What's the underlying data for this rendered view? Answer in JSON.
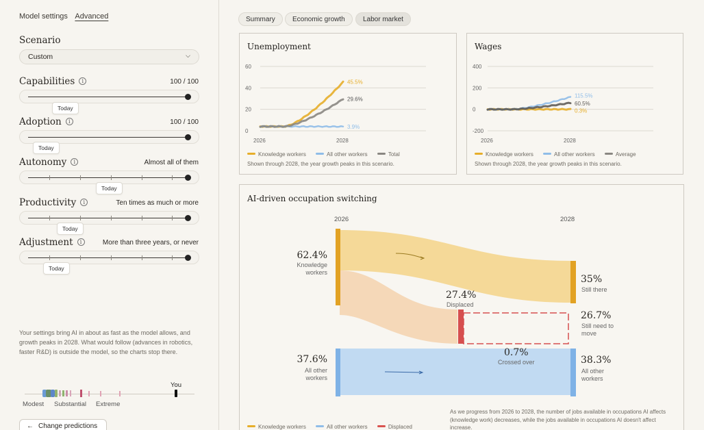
{
  "nav": {
    "model_settings": "Model settings",
    "advanced": "Advanced"
  },
  "scenario": {
    "title": "Scenario",
    "value": "Custom"
  },
  "sliders": [
    {
      "label": "Capabilities",
      "value": "100 / 100",
      "today": "Today"
    },
    {
      "label": "Adoption",
      "value": "100 / 100",
      "today": "Today"
    },
    {
      "label": "Autonomy",
      "value": "Almost all of them",
      "today": "Today"
    },
    {
      "label": "Productivity",
      "value": "Ten times as much or more",
      "today": "Today"
    },
    {
      "label": "Adjustment",
      "value": "More than three years, or never",
      "today": "Today"
    }
  ],
  "summary": "Your settings bring AI in about as fast as the model allows, and growth peaks in 2028. What would follow (advances in robotics, faster R&D) is outside the model, so the charts stop there.",
  "distribution": {
    "you": "You",
    "modest": "Modest",
    "substantial": "Substantial",
    "extreme": "Extreme"
  },
  "change_button": "Change predictions",
  "tabs": [
    "Summary",
    "Economic growth",
    "Labor market"
  ],
  "selected_tab": "Labor market",
  "colors": {
    "knowledge": "#e6ae2a",
    "other": "#8fbde8",
    "total": "#8a8782",
    "displaced": "#d9534f"
  },
  "unemployment": {
    "title": "Unemployment",
    "yticks": [
      "60",
      "40",
      "20",
      "0"
    ],
    "xticks": [
      "2026",
      "2028"
    ],
    "end_labels": {
      "knowledge": "45.5%",
      "total": "29.6%",
      "other": "3.9%"
    },
    "legend": [
      "Knowledge workers",
      "All other workers",
      "Total"
    ],
    "note": "Shown through 2028, the year growth peaks in this scenario."
  },
  "wages": {
    "title": "Wages",
    "yticks": [
      "400",
      "200",
      "0",
      "-200"
    ],
    "xticks": [
      "2026",
      "2028"
    ],
    "end_labels": {
      "other": "115.5%",
      "average": "60.5%",
      "knowledge": "0.3%"
    },
    "legend": [
      "Knowledge workers",
      "All other workers",
      "Average"
    ],
    "note": "Shown through 2028, the year growth peaks in this scenario."
  },
  "chart_data": [
    {
      "type": "line",
      "title": "Unemployment",
      "x": [
        "2026",
        "2028"
      ],
      "ylim": [
        0,
        60
      ],
      "series": [
        {
          "name": "Knowledge workers",
          "values": [
            4,
            45.5
          ]
        },
        {
          "name": "All other workers",
          "values": [
            4,
            3.9
          ]
        },
        {
          "name": "Total",
          "values": [
            4,
            29.6
          ]
        }
      ]
    },
    {
      "type": "line",
      "title": "Wages",
      "x": [
        "2026",
        "2028"
      ],
      "ylim": [
        -200,
        400
      ],
      "series": [
        {
          "name": "Knowledge workers",
          "values": [
            0,
            0.3
          ]
        },
        {
          "name": "All other workers",
          "values": [
            0,
            115.5
          ]
        },
        {
          "name": "Average",
          "values": [
            0,
            60.5
          ]
        }
      ]
    }
  ],
  "switching": {
    "title": "AI-driven occupation switching",
    "year_start": "2026",
    "year_end": "2028",
    "knowledge_start": {
      "pct": "62.4%",
      "label": "Knowledge workers"
    },
    "other_start": {
      "pct": "37.6%",
      "label": "All other workers"
    },
    "displaced": {
      "pct": "27.4%",
      "label": "Displaced"
    },
    "crossed": {
      "pct": "0.7%",
      "label": "Crossed over"
    },
    "still_there": {
      "pct": "35%",
      "label": "Still there"
    },
    "need_to_move": {
      "pct": "26.7%",
      "label": "Still need to move"
    },
    "other_end": {
      "pct": "38.3%",
      "label": "All other workers"
    },
    "note": "As we progress from 2026 to 2028, the number of jobs available in occupations AI affects (knowledge work) decreases, while the jobs available in occupations AI doesn't affect increase.",
    "legend": [
      "Knowledge workers",
      "All other workers",
      "Displaced"
    ]
  }
}
